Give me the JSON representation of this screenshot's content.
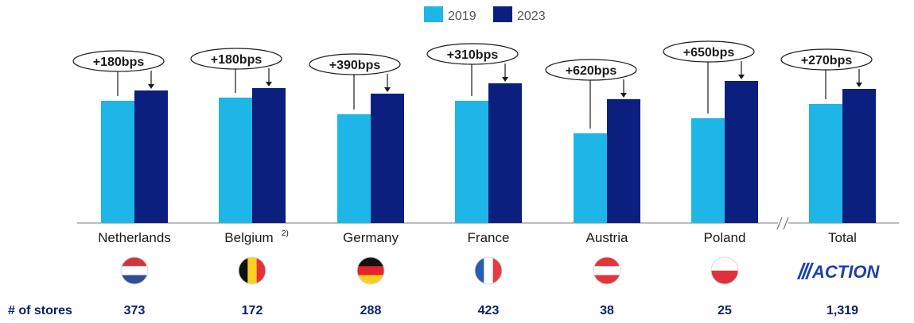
{
  "chart_data": {
    "type": "bar",
    "title": "",
    "xlabel": "",
    "ylabel": "",
    "legend": [
      "2019",
      "2023"
    ],
    "categories": [
      "Netherlands",
      "Belgium",
      "Germany",
      "France",
      "Austria",
      "Poland",
      "Total"
    ],
    "category_footnotes": [
      "",
      "2)",
      "",
      "",
      "",
      "",
      ""
    ],
    "series": [
      {
        "name": "2019",
        "color": "#1eb6e6",
        "values": [
          154,
          158,
          137,
          154,
          113,
          132,
          150
        ]
      },
      {
        "name": "2023",
        "color": "#0b1f7f",
        "values": [
          167,
          170,
          163,
          176,
          156,
          179,
          169
        ]
      }
    ],
    "changes": [
      "+180bps",
      "+180bps",
      "+390bps",
      "+310bps",
      "+620bps",
      "+650bps",
      "+270bps"
    ],
    "ylim": [
      0,
      200
    ],
    "grid": false,
    "axis_break_before": "Total"
  },
  "flags": [
    {
      "country": "Netherlands",
      "name": "netherlands-flag-icon",
      "stripes": "horizontal",
      "colors": [
        "#d0363f",
        "#ffffff",
        "#2f4d9a"
      ]
    },
    {
      "country": "Belgium",
      "name": "belgium-flag-icon",
      "stripes": "vertical",
      "colors": [
        "#111111",
        "#f7d21e",
        "#e6333b"
      ]
    },
    {
      "country": "Germany",
      "name": "germany-flag-icon",
      "stripes": "horizontal",
      "colors": [
        "#111111",
        "#e3242b",
        "#f8cf1e"
      ]
    },
    {
      "country": "France",
      "name": "france-flag-icon",
      "stripes": "vertical",
      "colors": [
        "#2a5db0",
        "#ffffff",
        "#e53a3f"
      ]
    },
    {
      "country": "Austria",
      "name": "austria-flag-icon",
      "stripes": "horizontal",
      "colors": [
        "#e3333b",
        "#ffffff",
        "#e3333b"
      ]
    },
    {
      "country": "Poland",
      "name": "poland-flag-icon",
      "stripes": "horizontal",
      "colors": [
        "#ffffff",
        "#e0303a"
      ]
    }
  ],
  "logo_text": "ACTION",
  "stores": {
    "label": "# of stores",
    "values": [
      "373",
      "172",
      "288",
      "423",
      "38",
      "25",
      "1,319"
    ]
  }
}
